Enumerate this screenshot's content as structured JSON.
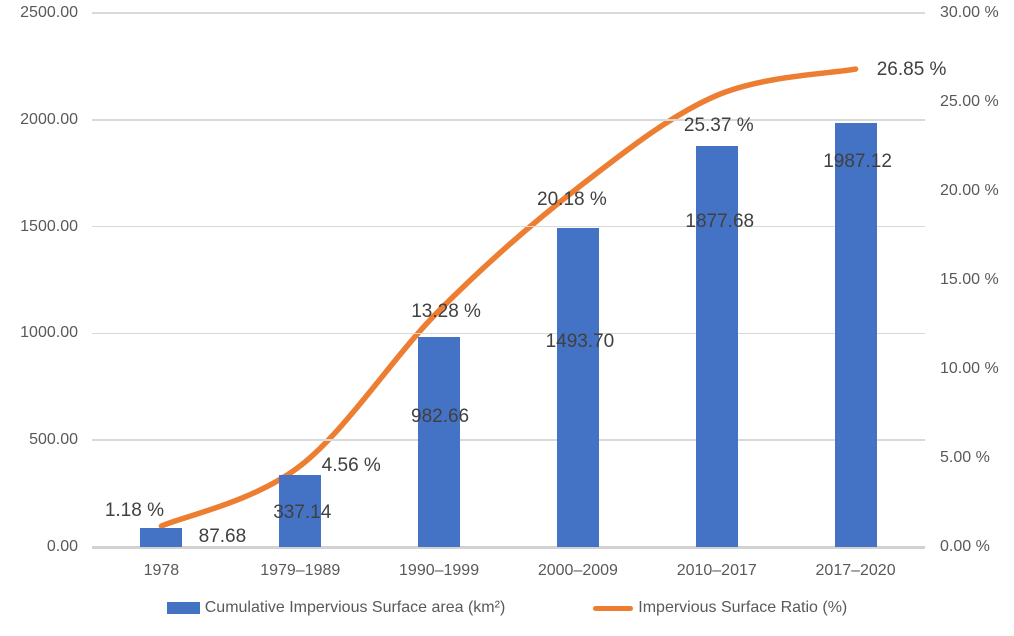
{
  "chart_data": {
    "type": "combo",
    "subtypes": [
      "bar",
      "line"
    ],
    "title": "",
    "categories": [
      "1978",
      "1979–1989",
      "1990–1999",
      "2000–2009",
      "2010–2017",
      "2017–2020"
    ],
    "series": [
      {
        "name": "Cumulative Impervious Surface area (km²)",
        "type": "bar",
        "axis": "left",
        "color": "#4472C4",
        "values": [
          87.68,
          337.14,
          982.66,
          1493.7,
          1877.68,
          1987.12
        ],
        "labels": [
          "87.68",
          "337.14",
          "982.66",
          "1493.70",
          "1877.68",
          "1987.12"
        ],
        "label_offsets": [
          [
            61,
            9
          ],
          [
            2,
            38
          ],
          [
            1,
            80
          ],
          [
            2,
            114
          ],
          [
            3,
            76
          ],
          [
            2,
            39
          ]
        ]
      },
      {
        "name": "Impervious Surface Ratio (%)",
        "type": "line",
        "axis": "right",
        "color": "#ED7D31",
        "smooth": true,
        "values": [
          1.18,
          4.56,
          13.28,
          20.18,
          25.37,
          26.85
        ],
        "labels": [
          "1.18 %",
          "4.56 %",
          "13.28 %",
          "20.18 %",
          "25.37 %",
          "26.85 %"
        ],
        "label_offsets": [
          [
            -27,
            -15
          ],
          [
            51,
            0
          ],
          [
            7,
            1
          ],
          [
            -6,
            12
          ],
          [
            2,
            31
          ],
          [
            56,
            1
          ]
        ]
      }
    ],
    "left_axis": {
      "min": 0,
      "max": 2500,
      "step": 500,
      "tick_labels": [
        "0.00",
        "500.00",
        "1000.00",
        "1500.00",
        "2000.00",
        "2500.00"
      ]
    },
    "right_axis": {
      "min": 0,
      "max": 30,
      "step": 5,
      "tick_labels": [
        "0.00 %",
        "5.00 %",
        "10.00 %",
        "15.00 %",
        "20.00 %",
        "25.00 %",
        "30.00 %"
      ]
    },
    "grid": true,
    "legend_position": "bottom"
  },
  "colors": {
    "bar": "#4472C4",
    "line": "#ED7D31",
    "gridline": "#d9d9d9",
    "axis_line": "#d2d2d2",
    "tick_text": "#595959",
    "data_label_text": "#404040",
    "background": "#ffffff"
  }
}
